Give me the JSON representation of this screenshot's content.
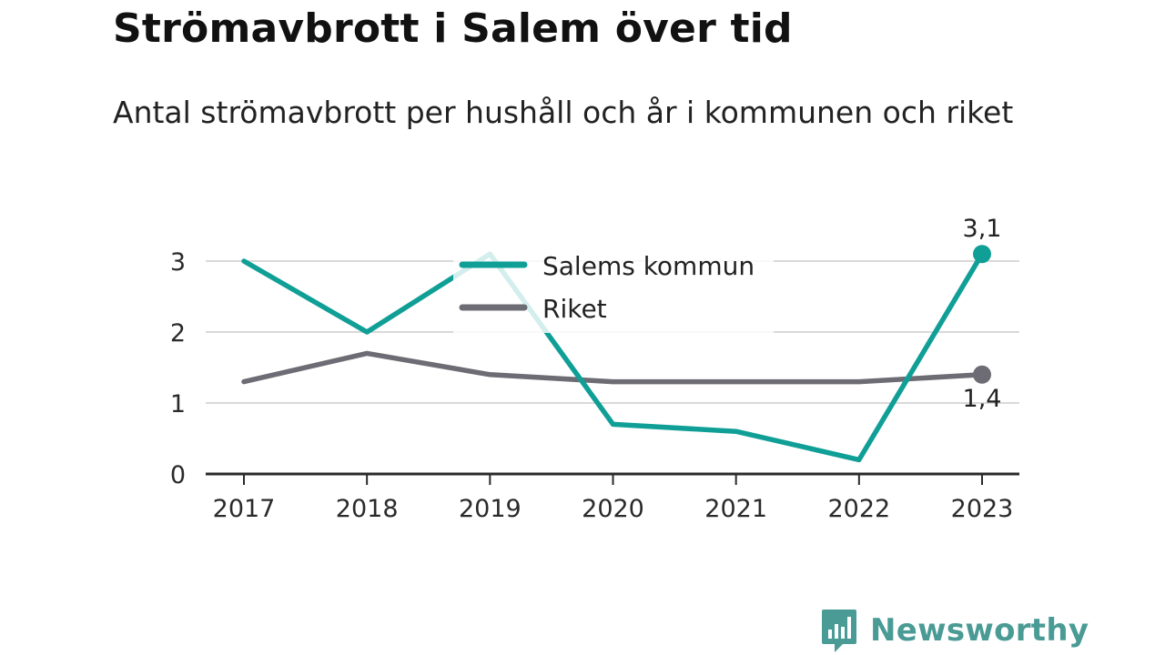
{
  "colors": {
    "salem": "#0f9f96",
    "riket": "#6d6c74",
    "grid": "#d9d9d9",
    "axis": "#2a2a2a",
    "brand": "#4a9b95"
  },
  "chart_data": {
    "type": "line",
    "title": "Strömavbrott i Salem över tid",
    "subtitle": "Antal strömavbrott per hushåll och år i kommunen och riket",
    "x": [
      "2017",
      "2018",
      "2019",
      "2020",
      "2021",
      "2022",
      "2023"
    ],
    "ylim": [
      0,
      3
    ],
    "yticks": [
      0,
      1,
      2,
      3
    ],
    "grid": true,
    "legend_position": "top-center",
    "series": [
      {
        "name": "Salems kommun",
        "color": "#0f9f96",
        "values": [
          3.0,
          2.0,
          3.1,
          0.7,
          0.6,
          0.2,
          3.1
        ],
        "end_label": "3,1"
      },
      {
        "name": "Riket",
        "color": "#6d6c74",
        "values": [
          1.3,
          1.7,
          1.4,
          1.3,
          1.3,
          1.3,
          1.4
        ],
        "end_label": "1,4"
      }
    ]
  },
  "brand": {
    "name": "Newsworthy",
    "icon": "bar-chart-speech-bubble-icon"
  }
}
